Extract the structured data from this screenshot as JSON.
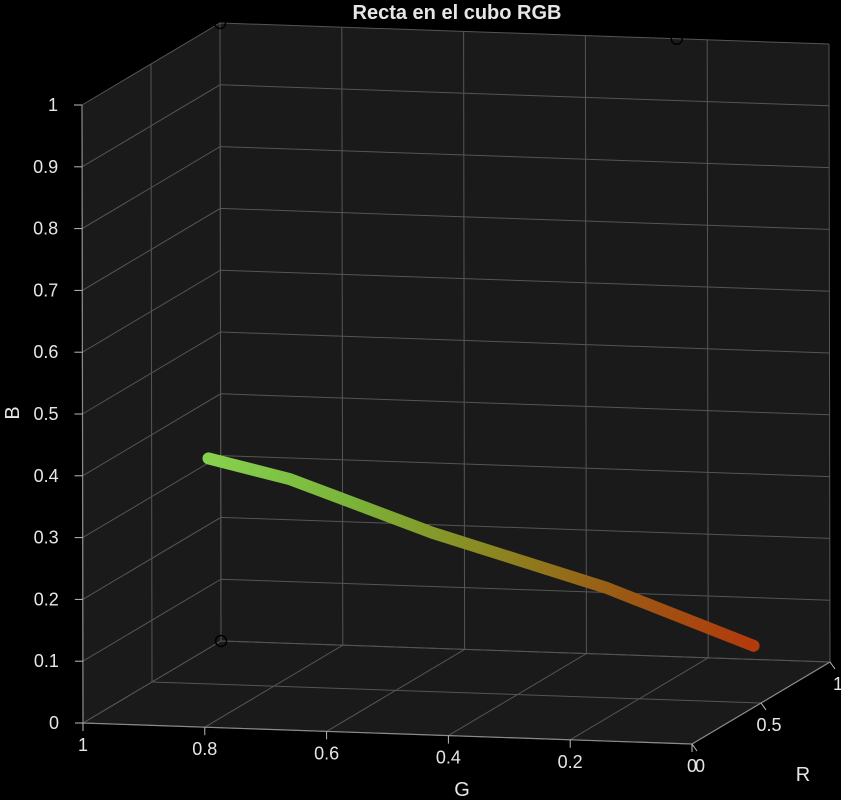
{
  "chart_data": {
    "type": "line",
    "projection": "3d",
    "title": "Recta en el cubo RGB",
    "axes": {
      "x": {
        "label": "G",
        "range": [
          0,
          1
        ],
        "reversed": true,
        "ticks": [
          0,
          0.2,
          0.4,
          0.6,
          0.8,
          1
        ],
        "tick_labels": [
          "0",
          "0.2",
          "0.4",
          "0.6",
          "0.8",
          "1"
        ]
      },
      "y": {
        "label": "R",
        "range": [
          0,
          1
        ],
        "ticks": [
          0,
          0.5,
          1
        ],
        "tick_labels": [
          "0",
          "0.5",
          "1"
        ]
      },
      "z": {
        "label": "B",
        "range": [
          0,
          1
        ],
        "ticks": [
          0,
          0.1,
          0.2,
          0.3,
          0.4,
          0.5,
          0.6,
          0.7,
          0.8,
          0.9,
          1
        ],
        "tick_labels": [
          "0",
          "0.1",
          "0.2",
          "0.3",
          "0.4",
          "0.5",
          "0.6",
          "0.7",
          "0.8",
          "0.9",
          "1"
        ]
      }
    },
    "series": [
      {
        "points": [
          {
            "R": 0.8,
            "G": 0.08,
            "B": 0.05,
            "color": "#b33a0c"
          },
          {
            "R": 0.7,
            "G": 0.3,
            "B": 0.15,
            "color": "#9a5a14"
          },
          {
            "R": 0.55,
            "G": 0.55,
            "B": 0.25,
            "color": "#8a8a22"
          },
          {
            "R": 0.4,
            "G": 0.75,
            "B": 0.35,
            "color": "#7ab53a"
          },
          {
            "R": 0.25,
            "G": 0.85,
            "B": 0.4,
            "color": "#86d14e"
          }
        ]
      }
    ],
    "markers": [
      {
        "R": 1,
        "G": 0.25,
        "B": 1
      },
      {
        "R": 1,
        "G": 1,
        "B": 0
      },
      {
        "R": 1,
        "G": 1,
        "B": 1
      }
    ],
    "background": "#000000",
    "panel_color": "#1a1a1a",
    "grid": true,
    "grid_color": "#555555",
    "text_color": "#e6e6e6"
  }
}
